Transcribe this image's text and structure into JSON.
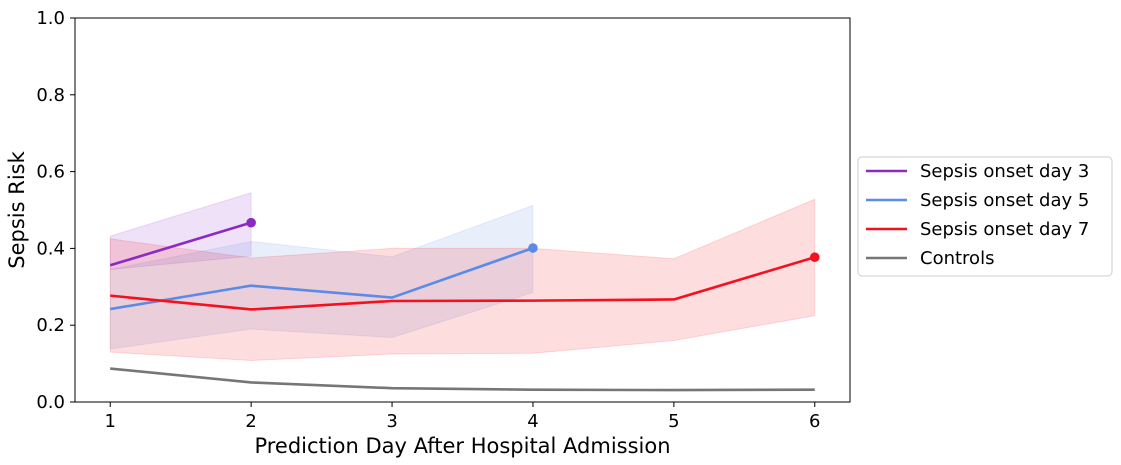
{
  "chart_data": {
    "type": "line",
    "title": "",
    "xlabel": "Prediction Day After Hospital Admission",
    "ylabel": "Sepsis Risk",
    "xlim": [
      0.75,
      6.25
    ],
    "ylim": [
      0.0,
      1.0
    ],
    "xticks": [
      1,
      2,
      3,
      4,
      5,
      6
    ],
    "xtick_labels": [
      "1",
      "2",
      "3",
      "4",
      "5",
      "6"
    ],
    "yticks": [
      0.0,
      0.2,
      0.4,
      0.6,
      0.8,
      1.0
    ],
    "ytick_labels": [
      "0.0",
      "0.2",
      "0.4",
      "0.6",
      "0.8",
      "1.0"
    ],
    "grid": false,
    "legend_position": "outside-right",
    "series": [
      {
        "name": "Sepsis onset day 3",
        "color": "#8B2BC4",
        "x": [
          1,
          2
        ],
        "y": [
          0.356,
          0.467
        ],
        "lower": [
          0.345,
          0.38
        ],
        "upper": [
          0.432,
          0.545
        ],
        "end_marker": true
      },
      {
        "name": "Sepsis onset day 5",
        "color": "#5B8BE6",
        "x": [
          1,
          2,
          3,
          4
        ],
        "y": [
          0.242,
          0.303,
          0.272,
          0.401
        ],
        "lower": [
          0.138,
          0.19,
          0.168,
          0.285
        ],
        "upper": [
          0.345,
          0.418,
          0.378,
          0.512
        ],
        "end_marker": true
      },
      {
        "name": "Sepsis onset day 7",
        "color": "#F5101E",
        "x": [
          1,
          2,
          3,
          4,
          5,
          6
        ],
        "y": [
          0.277,
          0.241,
          0.263,
          0.264,
          0.267,
          0.377
        ],
        "lower": [
          0.13,
          0.108,
          0.125,
          0.127,
          0.16,
          0.225
        ],
        "upper": [
          0.425,
          0.375,
          0.4,
          0.4,
          0.373,
          0.528
        ],
        "end_marker": true
      },
      {
        "name": "Controls",
        "color": "#767676",
        "x": [
          1,
          2,
          3,
          4,
          5,
          6
        ],
        "y": [
          0.087,
          0.051,
          0.036,
          0.032,
          0.031,
          0.032
        ],
        "end_marker": false
      }
    ]
  }
}
